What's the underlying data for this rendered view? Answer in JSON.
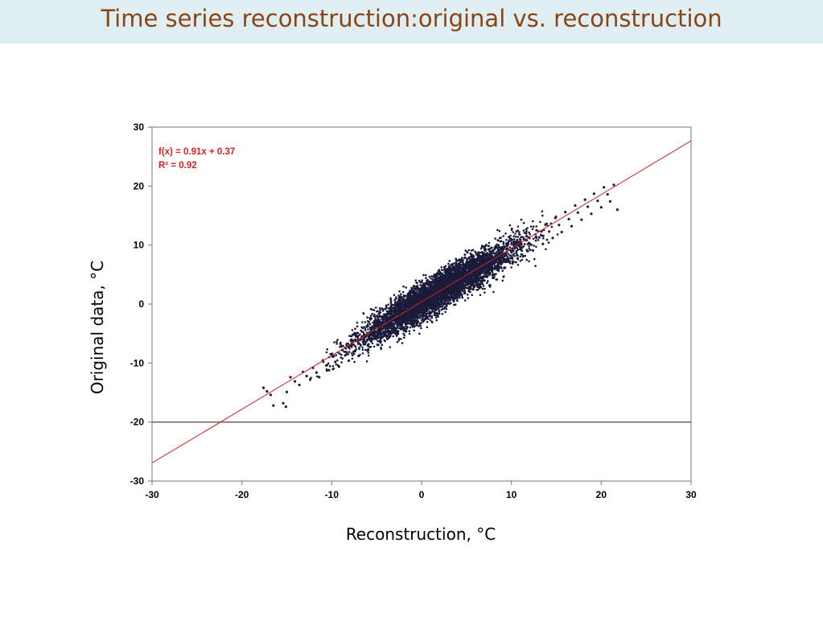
{
  "slide": {
    "title": "Time series reconstruction:original vs. reconstruction"
  },
  "chart_data": {
    "type": "scatter",
    "title": "",
    "xlabel": "Reconstruction, °C",
    "ylabel": "Original data, °C",
    "xlim": [
      -30,
      30
    ],
    "ylim": [
      -30,
      30
    ],
    "x_ticks": [
      "-30",
      "-20",
      "-10",
      "0",
      "10",
      "20",
      "30"
    ],
    "y_ticks": [
      "-30",
      "-20",
      "-10",
      "0",
      "10",
      "20",
      "30"
    ],
    "grid": false,
    "trendline": {
      "slope": 0.91,
      "intercept": 0.37,
      "equation_label": "f(x) = 0.91x + 0.37",
      "r2_label": "R² = 0.92",
      "color": "#d42020"
    },
    "reference_line": {
      "y": -20,
      "color": "#555555"
    },
    "point_color": "#1a1a3a",
    "series": [
      {
        "values_note_excluded": true,
        "points": [
          [
            -17.6,
            -14.2
          ],
          [
            -17.2,
            -14.8
          ],
          [
            -16.8,
            -15.4
          ],
          [
            -16.5,
            -17.2
          ],
          [
            -15.4,
            -16.8
          ],
          [
            -15.1,
            -17.4
          ],
          [
            -15.0,
            -14.9
          ],
          [
            -14.6,
            -12.4
          ],
          [
            -14.1,
            -13.1
          ],
          [
            -13.6,
            -13.7
          ],
          [
            -13.2,
            -11.5
          ],
          [
            -12.8,
            -12.2
          ],
          [
            -12.4,
            -12.8
          ],
          [
            -12.1,
            -10.8
          ],
          [
            -11.7,
            -11.6
          ],
          [
            -11.4,
            -12.4
          ],
          [
            -11.0,
            -9.6
          ],
          [
            -10.6,
            -10.4
          ],
          [
            -10.3,
            -11.2
          ],
          [
            -9.9,
            -8.9
          ],
          [
            -9.6,
            -9.8
          ],
          [
            -9.2,
            -10.6
          ],
          [
            -8.8,
            -7.8
          ],
          [
            -8.5,
            -8.7
          ],
          [
            -8.1,
            -9.6
          ],
          [
            -7.8,
            -6.9
          ],
          [
            -7.4,
            -7.9
          ],
          [
            -7.0,
            -8.8
          ],
          [
            -6.7,
            -5.9
          ],
          [
            -6.3,
            -6.8
          ],
          [
            -6.0,
            -7.9
          ],
          [
            -5.6,
            -4.8
          ],
          [
            -5.2,
            -5.8
          ],
          [
            -4.9,
            -6.9
          ],
          [
            -4.5,
            -3.9
          ],
          [
            -4.2,
            -4.9
          ],
          [
            -3.8,
            -5.9
          ],
          [
            -3.4,
            -2.8
          ],
          [
            -3.1,
            -3.8
          ],
          [
            -2.7,
            -4.9
          ],
          [
            -2.4,
            -1.8
          ],
          [
            -2.0,
            -2.9
          ],
          [
            -1.6,
            -3.9
          ],
          [
            -1.3,
            -0.8
          ],
          [
            -0.9,
            -1.9
          ],
          [
            -0.6,
            -3.0
          ],
          [
            -0.2,
            0.2
          ],
          [
            0.2,
            -0.9
          ],
          [
            0.5,
            -2.0
          ],
          [
            0.9,
            1.2
          ],
          [
            1.2,
            0.1
          ],
          [
            1.6,
            -1.0
          ],
          [
            2.0,
            2.2
          ],
          [
            2.3,
            1.1
          ],
          [
            2.7,
            0.0
          ],
          [
            3.0,
            3.3
          ],
          [
            3.4,
            2.1
          ],
          [
            3.8,
            1.0
          ],
          [
            4.1,
            4.3
          ],
          [
            4.5,
            3.1
          ],
          [
            4.8,
            2.0
          ],
          [
            5.2,
            5.3
          ],
          [
            5.6,
            4.1
          ],
          [
            5.9,
            3.0
          ],
          [
            6.3,
            6.3
          ],
          [
            6.6,
            5.2
          ],
          [
            7.0,
            4.0
          ],
          [
            7.4,
            7.4
          ],
          [
            7.7,
            6.2
          ],
          [
            8.1,
            5.0
          ],
          [
            8.4,
            8.4
          ],
          [
            8.8,
            7.2
          ],
          [
            9.2,
            6.1
          ],
          [
            9.5,
            9.4
          ],
          [
            9.9,
            8.2
          ],
          [
            10.2,
            7.1
          ],
          [
            10.6,
            10.4
          ],
          [
            11.0,
            9.3
          ],
          [
            11.3,
            8.1
          ],
          [
            11.7,
            11.5
          ],
          [
            12.0,
            10.3
          ],
          [
            12.4,
            9.1
          ],
          [
            12.8,
            12.5
          ],
          [
            13.1,
            11.3
          ],
          [
            13.5,
            10.2
          ],
          [
            13.8,
            13.5
          ],
          [
            14.2,
            12.3
          ],
          [
            14.6,
            11.2
          ],
          [
            14.9,
            14.6
          ],
          [
            15.3,
            13.4
          ],
          [
            15.6,
            12.2
          ],
          [
            16.0,
            15.6
          ],
          [
            16.4,
            14.4
          ],
          [
            16.7,
            13.2
          ],
          [
            17.1,
            16.7
          ],
          [
            17.4,
            15.5
          ],
          [
            17.8,
            14.3
          ],
          [
            18.2,
            17.7
          ],
          [
            18.5,
            16.5
          ],
          [
            18.9,
            15.3
          ],
          [
            19.2,
            18.7
          ],
          [
            19.6,
            17.5
          ],
          [
            20.0,
            16.4
          ],
          [
            20.3,
            19.8
          ],
          [
            20.7,
            18.6
          ],
          [
            21.0,
            17.4
          ],
          [
            21.4,
            20.2
          ],
          [
            21.8,
            16.0
          ]
        ]
      }
    ]
  }
}
